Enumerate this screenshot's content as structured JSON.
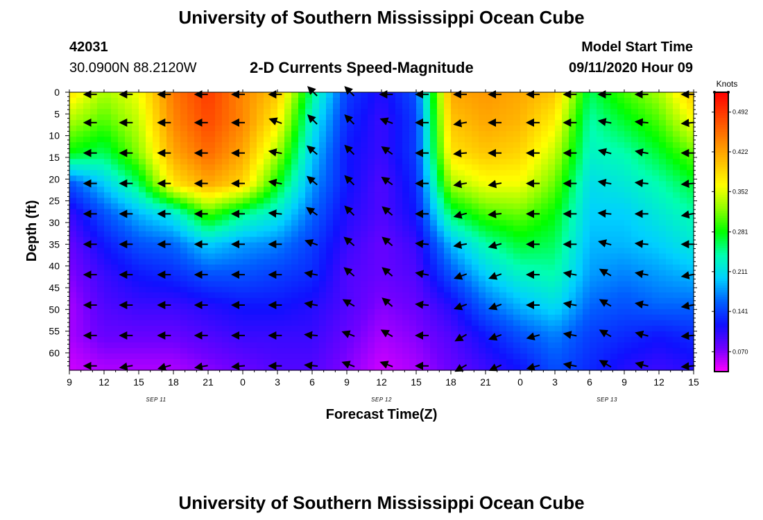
{
  "header": {
    "title": "University of Southern Mississippi Ocean Cube",
    "station_id": "42031",
    "location": "30.0900N 88.2120W",
    "chart_subtitle": "2-D Currents Speed-Magnitude",
    "model_start_label": "Model Start Time",
    "model_start_value": "09/11/2020 Hour 09"
  },
  "footer": {
    "title": "University of Southern Mississippi Ocean Cube"
  },
  "colorbar": {
    "unit": "Knots",
    "ticks": [
      0.07,
      0.141,
      0.211,
      0.281,
      0.352,
      0.422,
      0.492
    ],
    "tick_labels": [
      "0.070",
      "0.141",
      "0.211",
      "0.281",
      "0.352",
      "0.422",
      "0.492"
    ],
    "range": [
      0.035,
      0.527
    ],
    "colors": [
      "#ff00ff",
      "#7000ff",
      "#1010ff",
      "#0060ff",
      "#00d0ff",
      "#00ffb0",
      "#00ff00",
      "#90ff00",
      "#ffff00",
      "#ffc000",
      "#ff8000",
      "#ff4000",
      "#ff0000"
    ]
  },
  "chart_data": {
    "type": "heatmap",
    "title": "2-D Currents Speed-Magnitude",
    "xlabel": "Forecast Time(Z)",
    "ylabel": "Depth (ft)",
    "x_range_hours": [
      0,
      54
    ],
    "y_range_ft": [
      0,
      64
    ],
    "x_tick_labels": [
      "9",
      "12",
      "15",
      "18",
      "21",
      "0",
      "3",
      "6",
      "9",
      "12",
      "15",
      "18",
      "21",
      "0",
      "3",
      "6",
      "9",
      "12",
      "15"
    ],
    "y_ticks": [
      0,
      5,
      10,
      15,
      20,
      25,
      30,
      35,
      40,
      45,
      50,
      55,
      60
    ],
    "date_labels": [
      {
        "text": "SEP 11",
        "hour": 7.5
      },
      {
        "text": "SEP 12",
        "hour": 27
      },
      {
        "text": "SEP 13",
        "hour": 46.5
      }
    ],
    "grid_times_h": [
      0,
      3,
      6,
      9,
      12,
      15,
      18,
      21,
      24,
      27,
      30,
      33,
      36,
      39,
      42,
      45,
      48,
      51,
      54
    ],
    "grid_depths_ft": [
      0,
      7,
      14,
      21,
      28,
      35,
      42,
      49,
      56,
      63
    ],
    "speed_knots": [
      [
        0.38,
        0.33,
        0.36,
        0.45,
        0.49,
        0.44,
        0.4,
        0.25,
        0.14,
        0.11,
        0.15,
        0.42,
        0.43,
        0.42,
        0.4,
        0.26,
        0.3,
        0.33,
        0.4
      ],
      [
        0.33,
        0.3,
        0.34,
        0.44,
        0.48,
        0.44,
        0.37,
        0.22,
        0.13,
        0.1,
        0.14,
        0.4,
        0.42,
        0.41,
        0.37,
        0.24,
        0.27,
        0.3,
        0.36
      ],
      [
        0.28,
        0.26,
        0.32,
        0.42,
        0.46,
        0.42,
        0.33,
        0.2,
        0.12,
        0.1,
        0.14,
        0.38,
        0.4,
        0.39,
        0.34,
        0.23,
        0.24,
        0.27,
        0.31
      ],
      [
        0.15,
        0.2,
        0.26,
        0.38,
        0.42,
        0.39,
        0.28,
        0.18,
        0.12,
        0.09,
        0.13,
        0.33,
        0.36,
        0.36,
        0.31,
        0.21,
        0.22,
        0.24,
        0.27
      ],
      [
        0.1,
        0.15,
        0.19,
        0.22,
        0.3,
        0.25,
        0.22,
        0.16,
        0.11,
        0.09,
        0.12,
        0.26,
        0.3,
        0.31,
        0.28,
        0.2,
        0.2,
        0.22,
        0.24
      ],
      [
        0.08,
        0.12,
        0.15,
        0.16,
        0.2,
        0.18,
        0.17,
        0.14,
        0.1,
        0.08,
        0.1,
        0.19,
        0.24,
        0.27,
        0.26,
        0.19,
        0.19,
        0.2,
        0.22
      ],
      [
        0.07,
        0.1,
        0.12,
        0.13,
        0.15,
        0.15,
        0.14,
        0.13,
        0.09,
        0.08,
        0.09,
        0.15,
        0.2,
        0.23,
        0.24,
        0.18,
        0.17,
        0.18,
        0.19
      ],
      [
        0.06,
        0.09,
        0.1,
        0.1,
        0.11,
        0.12,
        0.12,
        0.11,
        0.09,
        0.07,
        0.08,
        0.11,
        0.16,
        0.19,
        0.21,
        0.16,
        0.15,
        0.16,
        0.16
      ],
      [
        0.06,
        0.08,
        0.08,
        0.08,
        0.09,
        0.1,
        0.1,
        0.1,
        0.08,
        0.06,
        0.07,
        0.09,
        0.12,
        0.15,
        0.17,
        0.14,
        0.13,
        0.12,
        0.13
      ],
      [
        0.05,
        0.06,
        0.06,
        0.06,
        0.07,
        0.08,
        0.09,
        0.09,
        0.07,
        0.05,
        0.06,
        0.08,
        0.1,
        0.12,
        0.15,
        0.13,
        0.11,
        0.1,
        0.11
      ]
    ],
    "arrow_times_h": [
      2.2,
      5.3,
      8.6,
      11.8,
      15,
      18.2,
      21.3,
      24.5,
      27.8,
      30.9,
      34.2,
      37.2,
      40.5,
      43.7,
      46.7,
      49.9,
      53.9
    ],
    "arrow_depths_ft": [
      0.5,
      7,
      14,
      21,
      28,
      35,
      42,
      49,
      56,
      63
    ],
    "arrow_direction_deg": [
      [
        180,
        180,
        180,
        180,
        180,
        180,
        135,
        135,
        180,
        180,
        180,
        180,
        180,
        180,
        180,
        180,
        180
      ],
      [
        180,
        180,
        180,
        180,
        180,
        160,
        135,
        135,
        160,
        180,
        190,
        180,
        180,
        180,
        170,
        175,
        185
      ],
      [
        180,
        180,
        180,
        180,
        180,
        170,
        140,
        135,
        145,
        180,
        185,
        180,
        180,
        180,
        165,
        170,
        180
      ],
      [
        180,
        180,
        180,
        180,
        180,
        170,
        140,
        135,
        145,
        180,
        190,
        190,
        180,
        180,
        170,
        175,
        185
      ],
      [
        180,
        180,
        180,
        180,
        180,
        175,
        145,
        135,
        140,
        180,
        195,
        185,
        180,
        180,
        175,
        180,
        190
      ],
      [
        180,
        180,
        180,
        180,
        180,
        180,
        160,
        140,
        140,
        175,
        190,
        195,
        180,
        180,
        165,
        175,
        180
      ],
      [
        180,
        180,
        180,
        180,
        180,
        180,
        170,
        140,
        140,
        170,
        200,
        200,
        180,
        170,
        150,
        170,
        190
      ],
      [
        180,
        180,
        180,
        180,
        180,
        180,
        170,
        150,
        140,
        175,
        200,
        200,
        180,
        170,
        150,
        170,
        190
      ],
      [
        180,
        180,
        180,
        180,
        180,
        180,
        175,
        160,
        150,
        180,
        210,
        200,
        195,
        170,
        150,
        165,
        185
      ],
      [
        180,
        190,
        195,
        190,
        185,
        180,
        175,
        160,
        160,
        180,
        210,
        205,
        195,
        170,
        150,
        165,
        185
      ]
    ]
  }
}
